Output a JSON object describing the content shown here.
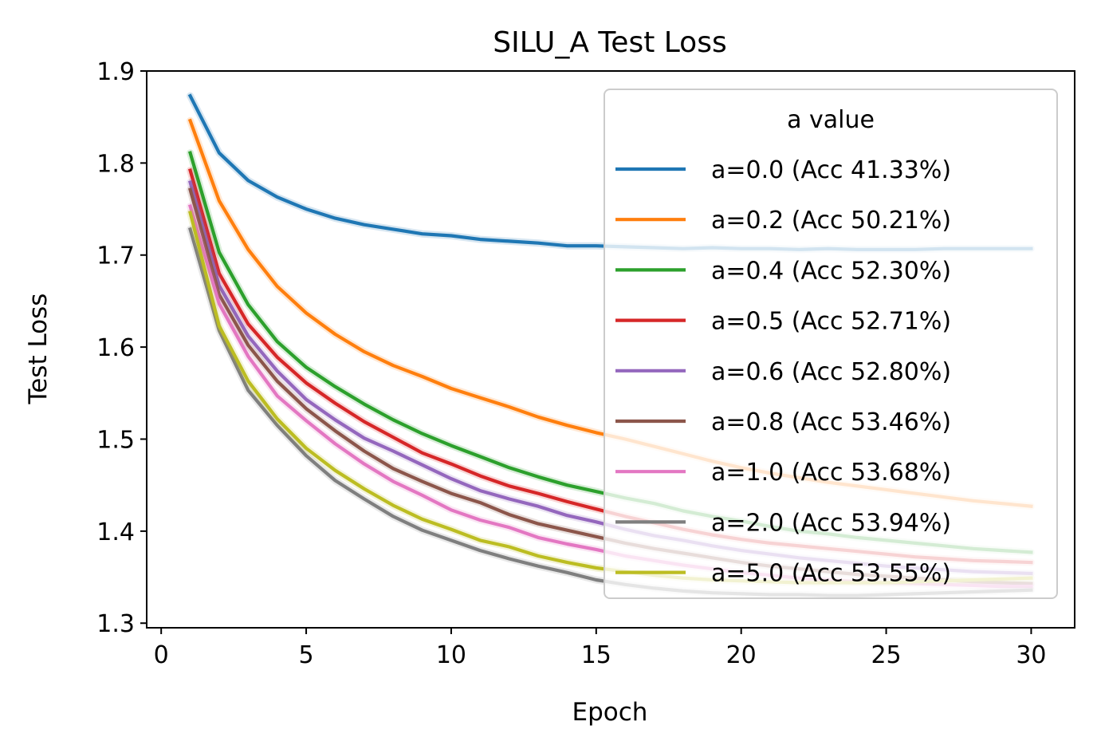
{
  "chart_data": {
    "type": "line",
    "title": "SILU_A Test Loss",
    "xlabel": "Epoch",
    "ylabel": "Test Loss",
    "xlim": [
      -0.5,
      31.5
    ],
    "ylim": [
      1.295,
      1.9
    ],
    "xticks": [
      0,
      5,
      10,
      15,
      20,
      25,
      30
    ],
    "yticks": [
      1.3,
      1.4,
      1.5,
      1.6,
      1.7,
      1.8,
      1.9
    ],
    "grid": false,
    "legend": {
      "title": "a value",
      "placement": "upper right"
    },
    "x": [
      1,
      2,
      3,
      4,
      5,
      6,
      7,
      8,
      9,
      10,
      11,
      12,
      13,
      14,
      15,
      16,
      17,
      18,
      19,
      20,
      21,
      22,
      23,
      24,
      25,
      26,
      27,
      28,
      29,
      30
    ],
    "series": [
      {
        "name": "a=0.0 (Acc 41.33%)",
        "color": "#1f77b4",
        "values": [
          1.873,
          1.811,
          1.781,
          1.763,
          1.75,
          1.74,
          1.733,
          1.728,
          1.723,
          1.721,
          1.717,
          1.715,
          1.713,
          1.71,
          1.71,
          1.709,
          1.708,
          1.707,
          1.708,
          1.707,
          1.707,
          1.706,
          1.707,
          1.706,
          1.706,
          1.706,
          1.707,
          1.707,
          1.707,
          1.707
        ]
      },
      {
        "name": "a=0.2 (Acc 50.21%)",
        "color": "#ff7f0e",
        "values": [
          1.846,
          1.759,
          1.706,
          1.666,
          1.637,
          1.614,
          1.595,
          1.58,
          1.568,
          1.555,
          1.545,
          1.535,
          1.524,
          1.515,
          1.507,
          1.5,
          1.492,
          1.484,
          1.476,
          1.469,
          1.463,
          1.458,
          1.453,
          1.449,
          1.445,
          1.441,
          1.437,
          1.433,
          1.43,
          1.427
        ]
      },
      {
        "name": "a=0.4 (Acc 52.30%)",
        "color": "#2ca02c",
        "values": [
          1.811,
          1.703,
          1.646,
          1.606,
          1.578,
          1.557,
          1.538,
          1.521,
          1.506,
          1.493,
          1.481,
          1.469,
          1.459,
          1.45,
          1.443,
          1.436,
          1.43,
          1.422,
          1.416,
          1.411,
          1.405,
          1.4,
          1.397,
          1.393,
          1.39,
          1.387,
          1.384,
          1.381,
          1.379,
          1.377
        ]
      },
      {
        "name": "a=0.5 (Acc 52.71%)",
        "color": "#d62728",
        "values": [
          1.792,
          1.68,
          1.625,
          1.589,
          1.561,
          1.539,
          1.519,
          1.502,
          1.485,
          1.473,
          1.46,
          1.449,
          1.441,
          1.432,
          1.424,
          1.416,
          1.409,
          1.402,
          1.396,
          1.391,
          1.387,
          1.384,
          1.381,
          1.378,
          1.375,
          1.372,
          1.37,
          1.368,
          1.367,
          1.366
        ]
      },
      {
        "name": "a=0.6 (Acc 52.80%)",
        "color": "#9467bd",
        "values": [
          1.779,
          1.667,
          1.612,
          1.574,
          1.543,
          1.521,
          1.501,
          1.487,
          1.472,
          1.457,
          1.444,
          1.435,
          1.427,
          1.417,
          1.41,
          1.402,
          1.395,
          1.39,
          1.384,
          1.379,
          1.375,
          1.371,
          1.368,
          1.365,
          1.362,
          1.36,
          1.358,
          1.356,
          1.355,
          1.354
        ]
      },
      {
        "name": "a=0.8 (Acc 53.46%)",
        "color": "#8c564b",
        "values": [
          1.771,
          1.657,
          1.602,
          1.563,
          1.533,
          1.509,
          1.487,
          1.468,
          1.454,
          1.441,
          1.431,
          1.418,
          1.408,
          1.401,
          1.394,
          1.387,
          1.381,
          1.376,
          1.371,
          1.366,
          1.362,
          1.359,
          1.356,
          1.353,
          1.351,
          1.349,
          1.347,
          1.345,
          1.344,
          1.343
        ]
      },
      {
        "name": "a=1.0 (Acc 53.68%)",
        "color": "#e377c2",
        "values": [
          1.753,
          1.647,
          1.59,
          1.547,
          1.52,
          1.495,
          1.473,
          1.454,
          1.439,
          1.423,
          1.412,
          1.404,
          1.393,
          1.386,
          1.38,
          1.373,
          1.368,
          1.363,
          1.359,
          1.355,
          1.352,
          1.349,
          1.347,
          1.345,
          1.344,
          1.343,
          1.342,
          1.341,
          1.34,
          1.34
        ]
      },
      {
        "name": "a=2.0 (Acc 53.94%)",
        "color": "#7f7f7f",
        "values": [
          1.728,
          1.618,
          1.553,
          1.515,
          1.482,
          1.455,
          1.435,
          1.416,
          1.401,
          1.39,
          1.379,
          1.37,
          1.362,
          1.355,
          1.347,
          1.342,
          1.338,
          1.335,
          1.333,
          1.332,
          1.331,
          1.331,
          1.33,
          1.33,
          1.331,
          1.332,
          1.333,
          1.334,
          1.335,
          1.336
        ]
      },
      {
        "name": "a=5.0 (Acc 53.55%)",
        "color": "#bcbd22",
        "values": [
          1.746,
          1.623,
          1.563,
          1.522,
          1.49,
          1.466,
          1.446,
          1.428,
          1.413,
          1.402,
          1.39,
          1.383,
          1.373,
          1.366,
          1.36,
          1.356,
          1.352,
          1.349,
          1.347,
          1.346,
          1.345,
          1.344,
          1.344,
          1.344,
          1.344,
          1.345,
          1.346,
          1.347,
          1.348,
          1.349
        ]
      }
    ]
  }
}
